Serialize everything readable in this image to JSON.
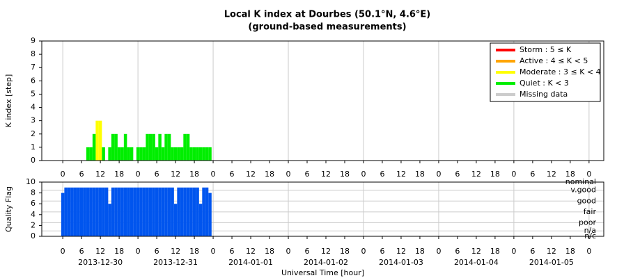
{
  "title": "Local K index at Dourbes (50.1°N, 4.6°E)",
  "subtitle": "(ground-based measurements)",
  "chart_data": [
    {
      "type": "bar",
      "ylabel": "K index [step]",
      "xlim": [
        -6.7,
        172.7
      ],
      "ylim": [
        0,
        9
      ],
      "yticks": [
        0,
        1,
        2,
        3,
        4,
        5,
        6,
        7,
        8,
        9
      ],
      "xticks": [
        0,
        6,
        12,
        18,
        {
          "value": 24,
          "label": "0"
        },
        {
          "value": 30,
          "label": "6"
        },
        {
          "value": 36,
          "label": "12"
        },
        {
          "value": 42,
          "label": "18"
        },
        {
          "value": 48,
          "label": "0"
        },
        {
          "value": 54,
          "label": "6"
        },
        {
          "value": 60,
          "label": "12"
        },
        {
          "value": 66,
          "label": "18"
        },
        {
          "value": 72,
          "label": "0"
        },
        {
          "value": 78,
          "label": "6"
        },
        {
          "value": 84,
          "label": "12"
        },
        {
          "value": 90,
          "label": "18"
        },
        {
          "value": 96,
          "label": "0"
        },
        {
          "value": 102,
          "label": "6"
        },
        {
          "value": 108,
          "label": "12"
        },
        {
          "value": 114,
          "label": "18"
        },
        {
          "value": 120,
          "label": "0"
        },
        {
          "value": 126,
          "label": "6"
        },
        {
          "value": 132,
          "label": "12"
        },
        {
          "value": 138,
          "label": "18"
        },
        {
          "value": 144,
          "label": "0"
        },
        {
          "value": 150,
          "label": "6"
        },
        {
          "value": 156,
          "label": "12"
        },
        {
          "value": 162,
          "label": "18"
        },
        {
          "value": 168,
          "label": "0"
        }
      ],
      "legend": "upper right",
      "series": [
        {
          "name": "Storm : 5 ≤ K",
          "color": "#ff0000",
          "x": [],
          "values": []
        },
        {
          "name": "Active : 4 ≤ K < 5",
          "color": "#ffa500",
          "x": [],
          "values": []
        },
        {
          "name": "Moderate : 3 ≤ K < 4",
          "color": "#ffff00",
          "x": [
            11,
            12
          ],
          "values": [
            3,
            3
          ]
        },
        {
          "name": "Quiet : K < 3",
          "color": "#00ee00",
          "x": [
            8,
            9,
            10,
            13,
            15,
            16,
            17,
            18,
            19,
            20,
            21,
            22,
            24,
            25,
            26,
            27,
            28,
            29,
            30,
            31,
            32,
            33,
            34,
            35,
            36,
            37,
            38,
            39,
            40,
            41,
            42,
            43,
            44,
            45,
            46,
            47
          ],
          "values": [
            1,
            1,
            2,
            1,
            1,
            2,
            2,
            1,
            1,
            2,
            1,
            1,
            1,
            1,
            1,
            2,
            2,
            2,
            1,
            2,
            1,
            2,
            2,
            1,
            1,
            1,
            1,
            2,
            2,
            1,
            1,
            1,
            1,
            1,
            1,
            1
          ]
        },
        {
          "name": "Missing data",
          "color": "#cccccc",
          "x": [],
          "values": []
        }
      ]
    },
    {
      "type": "bar",
      "ylabel": "Quality Flag",
      "xlabel": "Universal Time [hour]",
      "xlim": [
        -6.7,
        172.7
      ],
      "ylim": [
        0,
        10
      ],
      "yticks": [
        0,
        2,
        4,
        6,
        8,
        10
      ],
      "y2lim": [
        0,
        10
      ],
      "y2ticks": [
        {
          "value": 10,
          "label": "nominal"
        },
        {
          "value": 8.5,
          "label": "v.good"
        },
        {
          "value": 6.5,
          "label": "good"
        },
        {
          "value": 4.5,
          "label": "fair"
        },
        {
          "value": 2.5,
          "label": "poor"
        },
        {
          "value": 1,
          "label": "n/a"
        },
        {
          "value": 0,
          "label": "n/c"
        }
      ],
      "xticks": [
        0,
        6,
        12,
        18,
        {
          "value": 24,
          "label": "0"
        },
        {
          "value": 30,
          "label": "6"
        },
        {
          "value": 36,
          "label": "12"
        },
        {
          "value": 42,
          "label": "18"
        },
        {
          "value": 48,
          "label": "0"
        },
        {
          "value": 54,
          "label": "6"
        },
        {
          "value": 60,
          "label": "12"
        },
        {
          "value": 66,
          "label": "18"
        },
        {
          "value": 72,
          "label": "0"
        },
        {
          "value": 78,
          "label": "6"
        },
        {
          "value": 84,
          "label": "12"
        },
        {
          "value": 90,
          "label": "18"
        },
        {
          "value": 96,
          "label": "0"
        },
        {
          "value": 102,
          "label": "6"
        },
        {
          "value": 108,
          "label": "12"
        },
        {
          "value": 114,
          "label": "18"
        },
        {
          "value": 120,
          "label": "0"
        },
        {
          "value": 126,
          "label": "6"
        },
        {
          "value": 132,
          "label": "12"
        },
        {
          "value": 138,
          "label": "18"
        },
        {
          "value": 144,
          "label": "0"
        },
        {
          "value": 150,
          "label": "6"
        },
        {
          "value": 156,
          "label": "12"
        },
        {
          "value": 162,
          "label": "18"
        },
        {
          "value": 168,
          "label": "0"
        }
      ],
      "date_labels": [
        {
          "value": 12,
          "label": "2013-12-30"
        },
        {
          "value": 36,
          "label": "2013-12-31"
        },
        {
          "value": 60,
          "label": "2014-01-01"
        },
        {
          "value": 84,
          "label": "2014-01-02"
        },
        {
          "value": 108,
          "label": "2014-01-03"
        },
        {
          "value": 132,
          "label": "2014-01-04"
        },
        {
          "value": 156,
          "label": "2014-01-05"
        }
      ],
      "series": [
        {
          "color": "#0055ee",
          "x": [
            0,
            1,
            2,
            3,
            4,
            5,
            6,
            7,
            8,
            9,
            10,
            11,
            12,
            13,
            14,
            15,
            16,
            17,
            18,
            19,
            20,
            21,
            22,
            23,
            24,
            25,
            26,
            27,
            28,
            29,
            30,
            31,
            32,
            33,
            34,
            35,
            36,
            37,
            38,
            39,
            40,
            41,
            42,
            43,
            44,
            45,
            46,
            47
          ],
          "values": [
            8,
            9,
            9,
            9,
            9,
            9,
            9,
            9,
            9,
            9,
            9,
            9,
            9,
            9,
            9,
            6,
            9,
            9,
            9,
            9,
            9,
            9,
            9,
            9,
            9,
            9,
            9,
            9,
            9,
            9,
            9,
            9,
            9,
            9,
            9,
            9,
            6,
            9,
            9,
            9,
            9,
            9,
            9,
            9,
            6,
            9,
            9,
            8
          ]
        }
      ]
    }
  ]
}
